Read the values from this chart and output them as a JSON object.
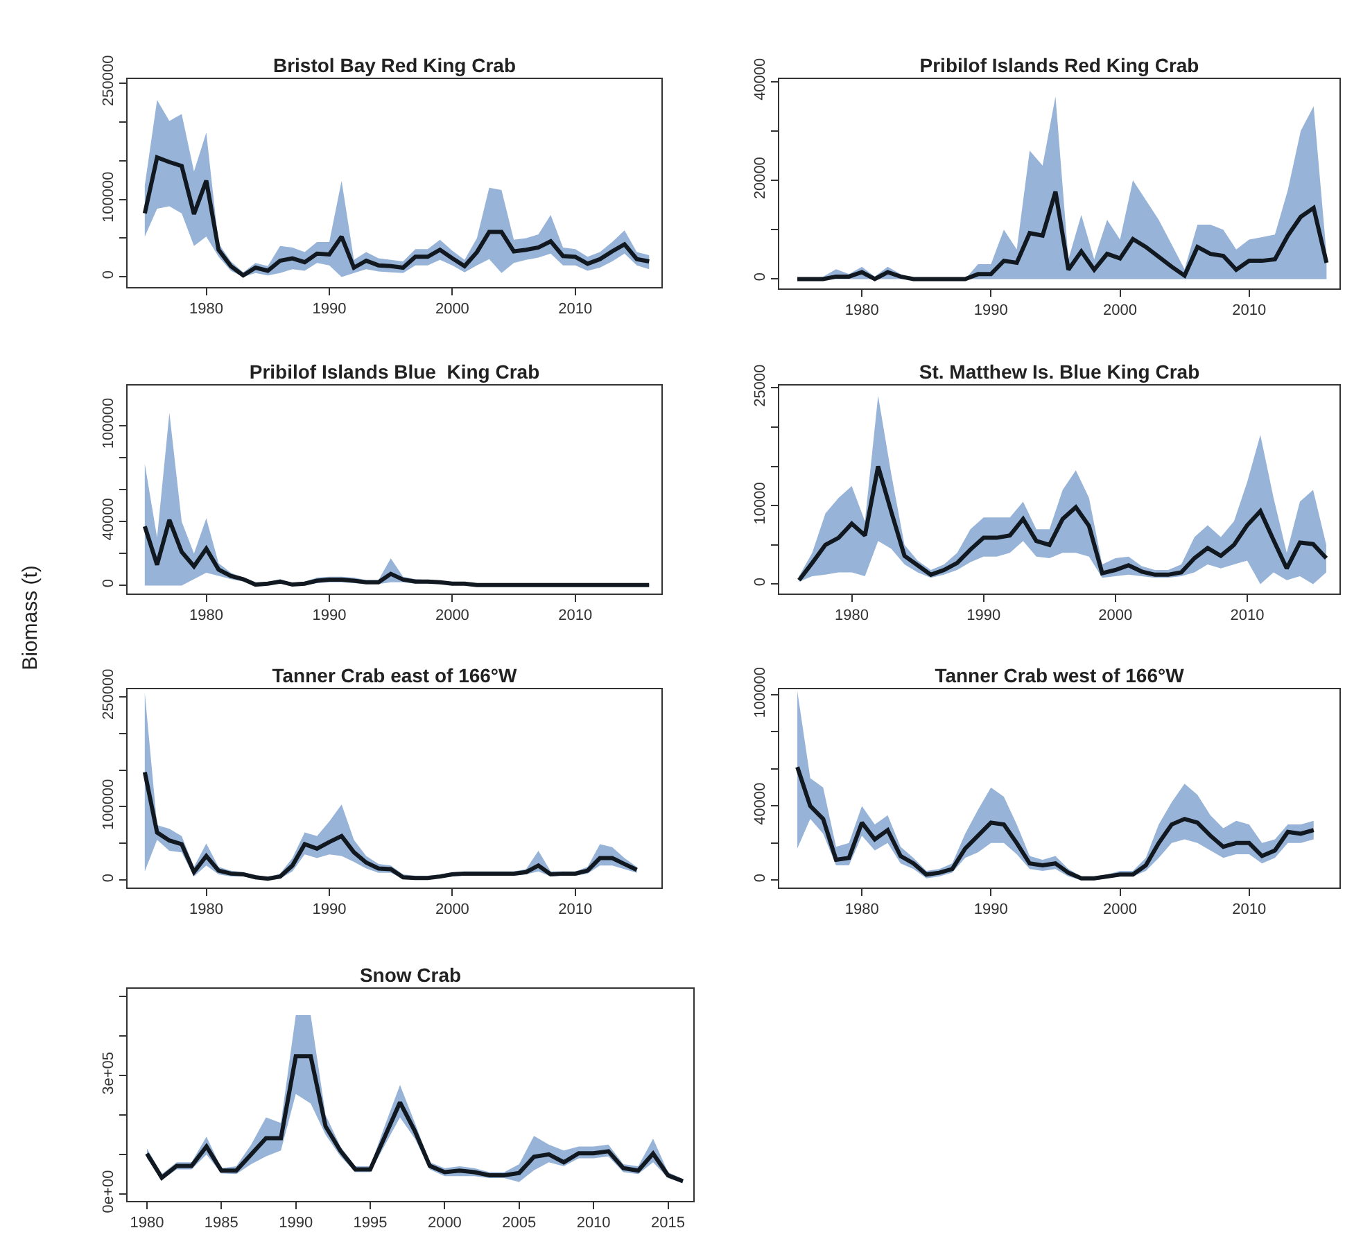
{
  "chart_data": [
    {
      "type": "line",
      "title": "Bristol Bay Red King Crab",
      "x": [
        1975,
        1976,
        1977,
        1978,
        1979,
        1980,
        1981,
        1982,
        1983,
        1984,
        1985,
        1986,
        1987,
        1988,
        1989,
        1990,
        1991,
        1992,
        1993,
        1994,
        1995,
        1996,
        1997,
        1998,
        1999,
        2000,
        2001,
        2002,
        2003,
        2004,
        2005,
        2006,
        2007,
        2008,
        2009,
        2010,
        2011,
        2012,
        2013,
        2014,
        2015,
        2016
      ],
      "series": [
        {
          "color": "#111820",
          "values": [
            82000,
            154000,
            148000,
            143000,
            81000,
            124000,
            35000,
            14000,
            2000,
            12000,
            8000,
            21000,
            24000,
            19000,
            30000,
            29000,
            52000,
            12000,
            21000,
            15000,
            14000,
            12000,
            26000,
            26000,
            35000,
            24000,
            14000,
            32000,
            58000,
            58000,
            33000,
            35000,
            38000,
            46000,
            27000,
            26000,
            17000,
            23000,
            33000,
            42000,
            23000,
            20000
          ],
          "lower": [
            52000,
            88000,
            91000,
            82000,
            40000,
            52000,
            26000,
            8000,
            0,
            5000,
            2000,
            5000,
            10000,
            8000,
            18000,
            15000,
            0,
            5000,
            10000,
            7000,
            6000,
            5000,
            15000,
            15000,
            22000,
            15000,
            6000,
            15000,
            23000,
            5000,
            18000,
            22000,
            25000,
            30000,
            15000,
            15000,
            8000,
            12000,
            20000,
            30000,
            15000,
            10000
          ],
          "upper": [
            118000,
            228000,
            201000,
            210000,
            136000,
            186000,
            43000,
            20000,
            6000,
            18000,
            14000,
            40000,
            38000,
            32000,
            45000,
            45000,
            124000,
            22000,
            32000,
            24000,
            22000,
            20000,
            36000,
            36000,
            48000,
            34000,
            22000,
            50000,
            115000,
            112000,
            48000,
            50000,
            55000,
            80000,
            38000,
            36000,
            26000,
            32000,
            45000,
            60000,
            32000,
            28000
          ]
        }
      ],
      "xlim": [
        1973.6,
        2017
      ],
      "xticks": [
        1980,
        1990,
        2000,
        2010
      ],
      "ylim": [
        -13000,
        255000
      ],
      "yticks": [
        0,
        {
          "value": 50000,
          "label": null
        },
        100000,
        {
          "value": 150000,
          "label": null
        },
        {
          "value": 200000,
          "label": null
        },
        250000
      ]
    },
    {
      "type": "line",
      "title": "Pribilof Islands Red King Crab",
      "x": [
        1975,
        1976,
        1977,
        1978,
        1979,
        1980,
        1981,
        1982,
        1983,
        1984,
        1985,
        1986,
        1987,
        1988,
        1989,
        1990,
        1991,
        1992,
        1993,
        1994,
        1995,
        1996,
        1997,
        1998,
        1999,
        2000,
        2001,
        2002,
        2003,
        2004,
        2005,
        2006,
        2007,
        2008,
        2009,
        2010,
        2011,
        2012,
        2013,
        2014,
        2015,
        2016
      ],
      "series": [
        {
          "color": "#111820",
          "values": [
            0,
            0,
            0,
            500,
            500,
            1400,
            0,
            1400,
            500,
            0,
            0,
            0,
            0,
            0,
            1000,
            1000,
            3700,
            3300,
            9300,
            8800,
            17700,
            1900,
            5600,
            1900,
            5100,
            4200,
            8100,
            6500,
            4500,
            2500,
            700,
            6500,
            5100,
            4700,
            1900,
            3700,
            3700,
            4000,
            8800,
            12600,
            14400,
            3300
          ],
          "lower": [
            0,
            0,
            0,
            0,
            0,
            0,
            0,
            0,
            0,
            0,
            0,
            0,
            0,
            0,
            0,
            0,
            0,
            0,
            0,
            0,
            0,
            0,
            0,
            0,
            0,
            0,
            0,
            0,
            0,
            0,
            0,
            0,
            0,
            0,
            0,
            0,
            0,
            0,
            0,
            0,
            0,
            0
          ],
          "upper": [
            0,
            0,
            500,
            2000,
            1000,
            2500,
            500,
            2500,
            1000,
            0,
            0,
            0,
            0,
            0,
            3000,
            3000,
            10000,
            6000,
            26000,
            23000,
            37000,
            4000,
            13000,
            4000,
            12000,
            8000,
            20000,
            16000,
            12000,
            7000,
            2000,
            11000,
            11000,
            10000,
            6000,
            8000,
            8500,
            9000,
            18000,
            30000,
            35000,
            5000
          ]
        }
      ],
      "xlim": [
        1973.6,
        2017
      ],
      "xticks": [
        1980,
        1990,
        2000,
        2010
      ],
      "ylim": [
        -1900,
        40500
      ],
      "yticks": [
        0,
        {
          "value": 10000,
          "label": null
        },
        20000,
        {
          "value": 30000,
          "label": null
        },
        40000
      ]
    },
    {
      "type": "line",
      "title": "Pribilof Islands Blue  King Crab",
      "ylabel": "Biomass (t)",
      "x": [
        1975,
        1976,
        1977,
        1978,
        1979,
        1980,
        1981,
        1982,
        1983,
        1984,
        1985,
        1986,
        1987,
        1988,
        1989,
        1990,
        1991,
        1992,
        1993,
        1994,
        1995,
        1996,
        1997,
        1998,
        1999,
        2000,
        2001,
        2002,
        2003,
        2004,
        2005,
        2006,
        2007,
        2008,
        2009,
        2010,
        2011,
        2012,
        2013,
        2014,
        2015,
        2016
      ],
      "series": [
        {
          "color": "#111820",
          "values": [
            37000,
            13000,
            41000,
            21000,
            12000,
            23000,
            10000,
            6000,
            4000,
            600,
            1200,
            2500,
            600,
            1200,
            3000,
            3700,
            3700,
            3000,
            2000,
            2000,
            7300,
            3700,
            2500,
            2500,
            2000,
            1200,
            1200,
            300,
            300,
            300,
            300,
            300,
            300,
            300,
            300,
            300,
            300,
            300,
            300,
            300,
            300,
            300
          ],
          "lower": [
            0,
            0,
            0,
            0,
            4000,
            8000,
            6000,
            4000,
            2500,
            0,
            500,
            1200,
            0,
            500,
            1500,
            2000,
            2000,
            1500,
            1000,
            1000,
            2000,
            2000,
            1200,
            1200,
            1000,
            500,
            500,
            0,
            0,
            0,
            0,
            0,
            0,
            0,
            0,
            0,
            0,
            0,
            0,
            0,
            0,
            0
          ],
          "upper": [
            76000,
            30000,
            108000,
            40000,
            20000,
            42000,
            14000,
            8000,
            5000,
            1500,
            2000,
            4000,
            1500,
            2500,
            5000,
            5500,
            5500,
            5000,
            3500,
            3500,
            17000,
            5500,
            4000,
            3500,
            3000,
            2000,
            2000,
            600,
            600,
            600,
            600,
            600,
            600,
            600,
            600,
            600,
            600,
            600,
            600,
            600,
            600,
            600
          ]
        }
      ],
      "xlim": [
        1973.6,
        2017
      ],
      "xticks": [
        1980,
        1990,
        2000,
        2010
      ],
      "ylim": [
        -5000,
        125000
      ],
      "yticks": [
        0,
        {
          "value": 20000,
          "label": null
        },
        40000,
        {
          "value": 60000,
          "label": null
        },
        {
          "value": 80000,
          "label": null
        },
        100000
      ]
    },
    {
      "type": "line",
      "title": "St. Matthew Is. Blue King Crab",
      "x": [
        1976,
        1977,
        1978,
        1979,
        1980,
        1981,
        1982,
        1983,
        1984,
        1985,
        1986,
        1987,
        1988,
        1989,
        1990,
        1991,
        1992,
        1993,
        1994,
        1995,
        1996,
        1997,
        1998,
        1999,
        2000,
        2001,
        2002,
        2003,
        2004,
        2005,
        2006,
        2007,
        2008,
        2009,
        2010,
        2011,
        2012,
        2013,
        2014,
        2015,
        2016
      ],
      "series": [
        {
          "color": "#111820",
          "values": [
            500,
            2700,
            5000,
            5900,
            7700,
            6200,
            15000,
            9200,
            3600,
            2400,
            1200,
            1800,
            2700,
            4400,
            5900,
            5900,
            6200,
            8300,
            5500,
            5000,
            8300,
            9800,
            7400,
            1400,
            1800,
            2400,
            1600,
            1200,
            1200,
            1500,
            3300,
            4600,
            3600,
            5000,
            7500,
            9300,
            5600,
            2000,
            5300,
            5100,
            3300
          ],
          "lower": [
            300,
            1000,
            1200,
            1500,
            1500,
            1000,
            5500,
            4500,
            2500,
            1500,
            800,
            1200,
            1800,
            2800,
            3500,
            3500,
            4000,
            5500,
            3500,
            3300,
            4000,
            4000,
            3500,
            800,
            1000,
            1200,
            1000,
            800,
            800,
            1000,
            1500,
            2500,
            2000,
            2500,
            3000,
            0,
            1500,
            500,
            1000,
            0,
            1500
          ],
          "upper": [
            1000,
            4000,
            9000,
            11000,
            12500,
            8000,
            24000,
            14000,
            5000,
            3000,
            1800,
            2500,
            4000,
            7000,
            8500,
            8500,
            8500,
            10500,
            7000,
            7000,
            12000,
            14500,
            11000,
            2500,
            3300,
            3500,
            2300,
            1800,
            1800,
            2500,
            6000,
            7500,
            6000,
            8000,
            13000,
            19000,
            11000,
            4000,
            10500,
            12000,
            5000
          ]
        }
      ],
      "xlim": [
        1974.5,
        2017
      ],
      "xticks": [
        1980,
        1990,
        2000,
        2010
      ],
      "ylim": [
        -1200,
        25300
      ],
      "yticks": [
        0,
        {
          "value": 5000,
          "label": null
        },
        10000,
        {
          "value": 15000,
          "label": null
        },
        {
          "value": 20000,
          "label": null
        },
        25000
      ]
    },
    {
      "type": "line",
      "title": "Tanner Crab east of 166°W",
      "x": [
        1975,
        1976,
        1977,
        1978,
        1979,
        1980,
        1981,
        1982,
        1983,
        1984,
        1985,
        1986,
        1987,
        1988,
        1989,
        1990,
        1991,
        1992,
        1993,
        1994,
        1995,
        1996,
        1997,
        1998,
        1999,
        2000,
        2001,
        2002,
        2003,
        2004,
        2005,
        2006,
        2007,
        2008,
        2009,
        2010,
        2011,
        2012,
        2013,
        2014,
        2015
      ],
      "series": [
        {
          "color": "#111820",
          "values": [
            147000,
            65000,
            54000,
            49000,
            11000,
            33000,
            13000,
            9000,
            8000,
            4000,
            2000,
            5000,
            20000,
            49000,
            43000,
            52000,
            60000,
            38000,
            24000,
            16000,
            15000,
            4000,
            3000,
            3000,
            5000,
            8000,
            9000,
            9000,
            9000,
            9000,
            9000,
            11000,
            20000,
            8000,
            9000,
            9000,
            13000,
            30000,
            30000,
            22000,
            14000
          ],
          "lower": [
            12000,
            55000,
            40000,
            38000,
            5000,
            20000,
            8000,
            5000,
            5000,
            2000,
            1000,
            2000,
            12000,
            35000,
            30000,
            35000,
            33000,
            25000,
            16000,
            10000,
            10000,
            2000,
            1000,
            1000,
            3000,
            5000,
            6000,
            6000,
            6000,
            6000,
            6000,
            8000,
            12000,
            5000,
            6000,
            6000,
            9000,
            20000,
            20000,
            15000,
            10000
          ],
          "upper": [
            255000,
            75000,
            70000,
            60000,
            18000,
            50000,
            18000,
            13000,
            11000,
            7000,
            4000,
            9000,
            30000,
            65000,
            60000,
            80000,
            103000,
            55000,
            33000,
            22000,
            20000,
            8000,
            6000,
            6000,
            8000,
            11000,
            12000,
            12000,
            12000,
            12000,
            12000,
            15000,
            40000,
            12000,
            12000,
            12000,
            18000,
            49000,
            45000,
            30000,
            18000
          ]
        }
      ],
      "xlim": [
        1973.6,
        2017
      ],
      "xticks": [
        1980,
        1990,
        2000,
        2010
      ],
      "ylim": [
        -10000,
        260000
      ],
      "yticks": [
        0,
        {
          "value": 50000,
          "label": null
        },
        100000,
        {
          "value": 150000,
          "label": null
        },
        {
          "value": 200000,
          "label": null
        },
        250000
      ]
    },
    {
      "type": "line",
      "title": "Tanner Crab west of 166°W",
      "x": [
        1975,
        1976,
        1977,
        1978,
        1979,
        1980,
        1981,
        1982,
        1983,
        1984,
        1985,
        1986,
        1987,
        1988,
        1989,
        1990,
        1991,
        1992,
        1993,
        1994,
        1995,
        1996,
        1997,
        1998,
        1999,
        2000,
        2001,
        2002,
        2003,
        2004,
        2005,
        2006,
        2007,
        2008,
        2009,
        2010,
        2011,
        2012,
        2013,
        2014,
        2015
      ],
      "series": [
        {
          "color": "#111820",
          "values": [
            61000,
            40000,
            33000,
            11000,
            12000,
            31000,
            22000,
            27000,
            13000,
            9000,
            3000,
            4000,
            6000,
            17000,
            24000,
            31000,
            30000,
            20000,
            9000,
            8000,
            9000,
            4000,
            1000,
            1000,
            2000,
            3000,
            3000,
            8000,
            20000,
            30000,
            33000,
            31000,
            24000,
            18000,
            20000,
            20000,
            13000,
            16000,
            26000,
            25000,
            27000
          ],
          "lower": [
            17000,
            33000,
            25000,
            8000,
            8000,
            24000,
            16000,
            20000,
            9000,
            6000,
            1000,
            2000,
            4000,
            12000,
            15000,
            20000,
            20000,
            14000,
            6000,
            5000,
            6000,
            2000,
            0,
            0,
            1000,
            2000,
            2000,
            5000,
            12000,
            20000,
            22000,
            20000,
            16000,
            12000,
            14000,
            14000,
            9000,
            12000,
            20000,
            20000,
            22000
          ],
          "upper": [
            102000,
            55000,
            50000,
            18000,
            20000,
            40000,
            30000,
            35000,
            18000,
            12000,
            5000,
            6000,
            9000,
            25000,
            38000,
            50000,
            45000,
            30000,
            13000,
            11000,
            13000,
            6000,
            2000,
            2000,
            3000,
            5000,
            5000,
            12000,
            30000,
            42000,
            52000,
            46000,
            35000,
            28000,
            32000,
            30000,
            20000,
            22000,
            30000,
            30000,
            32000
          ]
        }
      ],
      "xlim": [
        1973.6,
        2017
      ],
      "xticks": [
        1980,
        1990,
        2000,
        2010
      ],
      "ylim": [
        -4000,
        103000
      ],
      "yticks": [
        0,
        {
          "value": 20000,
          "label": null
        },
        40000,
        {
          "value": 60000,
          "label": null
        },
        {
          "value": 80000,
          "label": null
        },
        100000
      ]
    },
    {
      "type": "line",
      "title": "Snow Crab",
      "x": [
        1980,
        1981,
        1982,
        1983,
        1984,
        1985,
        1986,
        1987,
        1988,
        1989,
        1990,
        1991,
        1992,
        1993,
        1994,
        1995,
        1996,
        1997,
        1998,
        1999,
        2000,
        2001,
        2002,
        2003,
        2004,
        2005,
        2006,
        2007,
        2008,
        2009,
        2010,
        2011,
        2012,
        2013,
        2014,
        2015,
        2016
      ],
      "series": [
        {
          "color": "#111820",
          "values": [
            102000,
            41000,
            71000,
            71000,
            120000,
            59000,
            59000,
            100000,
            141000,
            141000,
            349000,
            349000,
            171000,
            109000,
            62000,
            62000,
            147000,
            232000,
            159000,
            71000,
            55000,
            59000,
            55000,
            47000,
            47000,
            53000,
            94000,
            100000,
            80000,
            103000,
            103000,
            108000,
            65000,
            59000,
            102000,
            47000,
            32000
          ],
          "lower": [
            90000,
            35000,
            62000,
            62000,
            100000,
            52000,
            50000,
            75000,
            95000,
            110000,
            253000,
            229000,
            150000,
            95000,
            55000,
            55000,
            125000,
            194000,
            140000,
            62000,
            45000,
            45000,
            45000,
            40000,
            40000,
            30000,
            60000,
            80000,
            70000,
            90000,
            90000,
            95000,
            55000,
            50000,
            80000,
            40000,
            27000
          ],
          "upper": [
            115000,
            50000,
            80000,
            80000,
            145000,
            65000,
            70000,
            125000,
            194000,
            180000,
            453000,
            453000,
            200000,
            120000,
            70000,
            70000,
            175000,
            276000,
            180000,
            80000,
            65000,
            70000,
            65000,
            55000,
            55000,
            75000,
            147000,
            125000,
            110000,
            120000,
            120000,
            125000,
            75000,
            70000,
            140000,
            55000,
            38000
          ]
        }
      ],
      "xlim": [
        1978.7,
        2016.7
      ],
      "xticks": [
        1980,
        1985,
        1990,
        1995,
        2000,
        2005,
        2010,
        2015
      ],
      "ylim": [
        -18000,
        520000
      ],
      "yticks": [
        {
          "value": 0,
          "label": "0e+00"
        },
        {
          "value": 100000,
          "label": null
        },
        {
          "value": 200000,
          "label": null
        },
        {
          "value": 300000,
          "label": "3e+05"
        },
        {
          "value": 400000,
          "label": null
        },
        {
          "value": 500000,
          "label": null
        }
      ]
    }
  ]
}
